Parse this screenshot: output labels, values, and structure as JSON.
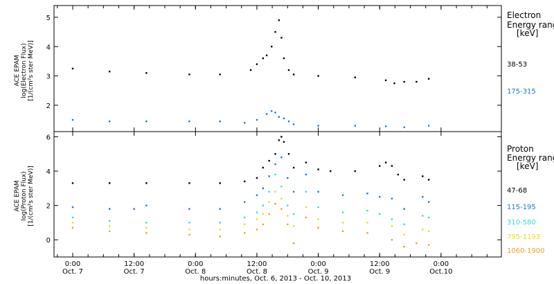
{
  "x_axis_title": "hours:minutes, Oct. 6, 2013 - Oct. 10, 2013",
  "x_ticks": [
    {
      "time": "0:00",
      "date": "Oct. 7",
      "day": 0
    },
    {
      "time": "12:00",
      "date": "Oct. 7",
      "day": 0.5
    },
    {
      "time": "0:00",
      "date": "Oct. 8",
      "day": 1
    },
    {
      "time": "12:00",
      "date": "Oct. 8",
      "day": 1.5
    },
    {
      "time": "0:00",
      "date": "Oct. 9",
      "day": 2
    },
    {
      "time": "12:00",
      "date": "Oct. 9",
      "day": 2.5
    },
    {
      "time": "0:00",
      "date": "Oct.10",
      "day": 3
    }
  ],
  "chart_data": [
    {
      "type": "scatter",
      "panel": "electron",
      "ylabel_lines": [
        "ACE EPAM",
        "log(Electron Flux)",
        "[1/(cm²s ster MeV)]"
      ],
      "ylim": [
        1.1,
        5.4
      ],
      "yticks": [
        2,
        3,
        4,
        5
      ],
      "legend_title": [
        "Electron",
        "Energy ranges",
        "[keV]"
      ],
      "series": [
        {
          "name": "38-53",
          "color": "#000000",
          "x": [
            0.0,
            0.3,
            0.6,
            0.95,
            1.2,
            1.45,
            1.5,
            1.55,
            1.58,
            1.62,
            1.65,
            1.68,
            1.7,
            1.72,
            1.76,
            1.8,
            2.0,
            2.3,
            2.55,
            2.62,
            2.7,
            2.8,
            2.9
          ],
          "y": [
            3.25,
            3.15,
            3.1,
            3.05,
            3.05,
            3.2,
            3.4,
            3.6,
            3.7,
            4.0,
            4.5,
            4.9,
            4.3,
            3.6,
            3.2,
            3.05,
            3.0,
            2.95,
            2.85,
            2.75,
            2.8,
            2.8,
            2.9
          ]
        },
        {
          "name": "175-315",
          "color": "#1f77d0",
          "x": [
            0.0,
            0.3,
            0.6,
            0.95,
            1.2,
            1.4,
            1.5,
            1.58,
            1.62,
            1.65,
            1.68,
            1.72,
            1.76,
            1.8,
            2.0,
            2.3,
            2.55,
            2.7,
            2.9
          ],
          "y": [
            1.5,
            1.45,
            1.45,
            1.45,
            1.45,
            1.4,
            1.5,
            1.7,
            1.8,
            1.75,
            1.6,
            1.55,
            1.45,
            1.35,
            1.3,
            1.3,
            1.28,
            1.25,
            1.3
          ]
        }
      ]
    },
    {
      "type": "scatter",
      "panel": "proton",
      "ylabel_lines": [
        "ACE EPAM",
        "log(Proton Flux)",
        "[1/(cm²s ster MeV)]"
      ],
      "ylim": [
        -1.0,
        6.3
      ],
      "yticks": [
        0,
        2,
        4,
        6
      ],
      "legend_title": [
        "Proton",
        "Energy ranges",
        "[keV]"
      ],
      "series": [
        {
          "name": "47-68",
          "color": "#000000",
          "x": [
            0.0,
            0.3,
            0.6,
            0.95,
            1.2,
            1.4,
            1.5,
            1.55,
            1.6,
            1.65,
            1.68,
            1.7,
            1.72,
            1.76,
            1.8,
            1.9,
            2.0,
            2.1,
            2.3,
            2.5,
            2.55,
            2.6,
            2.65,
            2.7,
            2.85,
            2.9
          ],
          "y": [
            3.3,
            3.3,
            3.3,
            3.3,
            3.3,
            3.4,
            3.6,
            4.2,
            4.6,
            5.0,
            5.8,
            6.0,
            5.7,
            5.0,
            4.2,
            4.5,
            4.1,
            4.0,
            4.0,
            4.3,
            4.5,
            4.3,
            3.8,
            3.5,
            3.7,
            3.5
          ]
        },
        {
          "name": "115-195",
          "color": "#1f77d0",
          "x": [
            0.0,
            0.3,
            0.5,
            0.6,
            0.95,
            1.2,
            1.4,
            1.5,
            1.55,
            1.6,
            1.65,
            1.7,
            1.75,
            1.8,
            1.9,
            2.0,
            2.2,
            2.4,
            2.5,
            2.6,
            2.7,
            2.85,
            2.9
          ],
          "y": [
            1.9,
            1.8,
            1.8,
            2.0,
            1.8,
            1.8,
            2.2,
            2.6,
            3.0,
            3.7,
            4.4,
            4.8,
            3.6,
            2.8,
            3.8,
            2.8,
            2.6,
            2.7,
            2.5,
            2.4,
            1.8,
            2.5,
            2.2
          ]
        },
        {
          "name": "310-580",
          "color": "#30e0d0",
          "x": [
            0.0,
            0.3,
            0.6,
            0.95,
            1.2,
            1.4,
            1.5,
            1.55,
            1.6,
            1.65,
            1.7,
            1.75,
            1.8,
            1.9,
            2.0,
            2.2,
            2.4,
            2.5,
            2.6,
            2.7,
            2.85,
            2.9
          ],
          "y": [
            1.3,
            1.1,
            1.0,
            1.0,
            1.0,
            1.3,
            1.6,
            2.0,
            2.8,
            3.8,
            3.1,
            2.0,
            1.5,
            2.8,
            1.9,
            1.6,
            1.7,
            1.5,
            1.2,
            0.9,
            1.4,
            1.3
          ]
        },
        {
          "name": "795-1193",
          "color": "#e0e020",
          "x": [
            0.0,
            0.3,
            0.6,
            0.95,
            1.2,
            1.4,
            1.5,
            1.55,
            1.6,
            1.65,
            1.7,
            1.75,
            1.8,
            1.9,
            2.0,
            2.2,
            2.4,
            2.6,
            2.7,
            2.85,
            2.9
          ],
          "y": [
            1.0,
            0.8,
            0.7,
            0.6,
            0.6,
            0.9,
            1.2,
            1.5,
            2.2,
            2.8,
            2.4,
            1.4,
            0.8,
            1.9,
            1.2,
            1.0,
            1.0,
            0.8,
            0.3,
            0.6,
            0.5
          ]
        },
        {
          "name": "1060-1900",
          "color": "#f0a020",
          "x": [
            0.0,
            0.3,
            0.6,
            0.95,
            1.2,
            1.4,
            1.5,
            1.55,
            1.6,
            1.65,
            1.7,
            1.75,
            1.8,
            1.9,
            2.0,
            2.2,
            2.4,
            2.6,
            2.7,
            2.8,
            2.9
          ],
          "y": [
            0.7,
            0.5,
            0.4,
            0.3,
            0.2,
            0.4,
            0.6,
            0.9,
            1.5,
            2.1,
            1.8,
            0.9,
            -0.2,
            1.3,
            0.7,
            0.5,
            0.4,
            0.0,
            -0.4,
            -0.2,
            -0.3
          ]
        }
      ]
    }
  ]
}
